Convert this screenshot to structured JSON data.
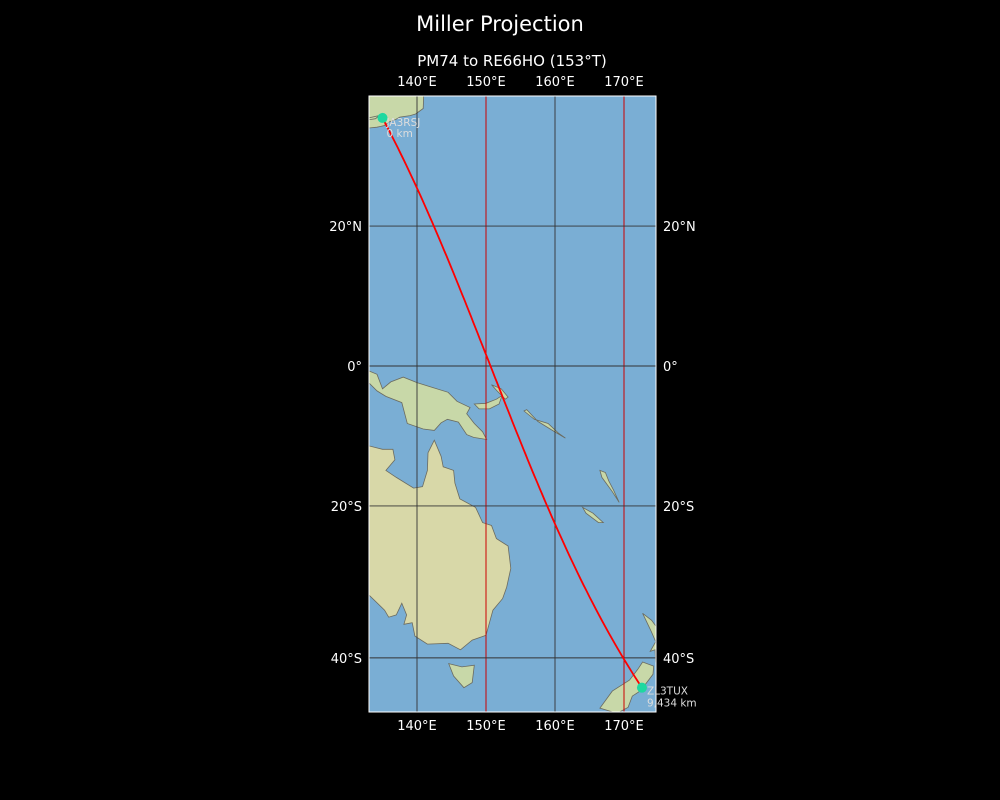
{
  "title": "Miller Projection",
  "subtitle": "PM74 to RE66HO (153°T)",
  "map": {
    "projection": "Miller",
    "extent": {
      "lon": [
        133.0,
        174.6
      ],
      "lat": [
        -46.5,
        37.3
      ]
    },
    "lon_ticks": [
      140,
      150,
      160,
      170
    ],
    "lon_tick_labels": [
      "140°E",
      "150°E",
      "160°E",
      "170°E"
    ],
    "lat_ticks": [
      20,
      0,
      -20,
      -40
    ],
    "lat_tick_labels": [
      "20°N",
      "0°",
      "20°S",
      "40°S"
    ],
    "highlight_meridians": [
      150,
      170
    ],
    "colors": {
      "ocean": "#7aaed4",
      "land": "#c8d8a8",
      "path": "#ff0000",
      "marker": "#1fd8a0",
      "grid": "#333333",
      "meridian_highlight": "#cc0000"
    }
  },
  "path": {
    "start": {
      "label": "JA3RSJ",
      "distance": "0 km",
      "lon": 135.0,
      "lat": 34.5
    },
    "end": {
      "label": "ZL3TUX",
      "distance": "9,434 km",
      "lon": 172.6,
      "lat": -43.6
    }
  }
}
